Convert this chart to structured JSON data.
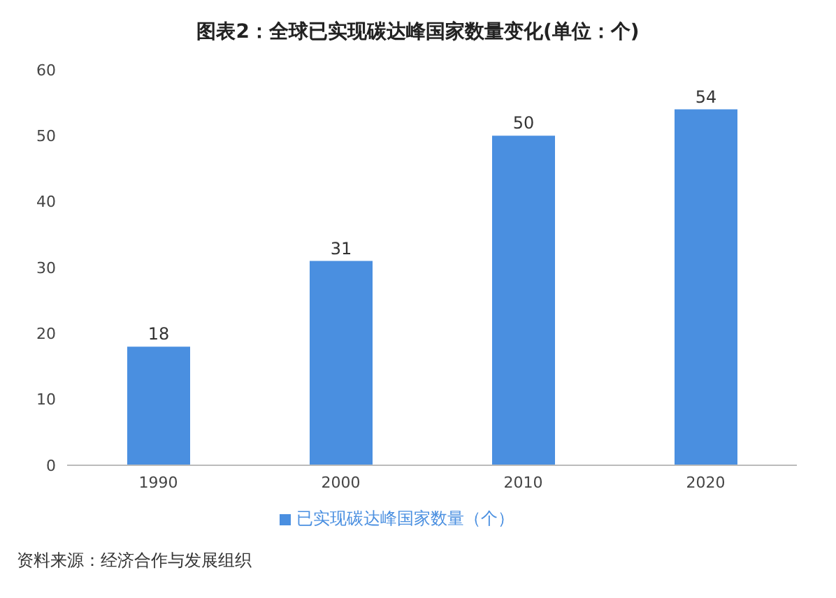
{
  "chart_data": {
    "type": "bar",
    "title": "图表2：全球已实现碳达峰国家数量变化(单位：个)",
    "categories": [
      "1990",
      "2000",
      "2010",
      "2020"
    ],
    "series": [
      {
        "name": "已实现碳达峰国家数量（个）",
        "color": "#4a8fe0",
        "values": [
          18,
          31,
          50,
          54
        ]
      }
    ],
    "ylim": [
      0,
      60
    ],
    "yticks": [
      0,
      10,
      20,
      30,
      40,
      50,
      60
    ],
    "grid": false,
    "legend": "bottom",
    "data_labels": true,
    "annotations": [
      "资料来源：经济合作与发展组织"
    ]
  }
}
